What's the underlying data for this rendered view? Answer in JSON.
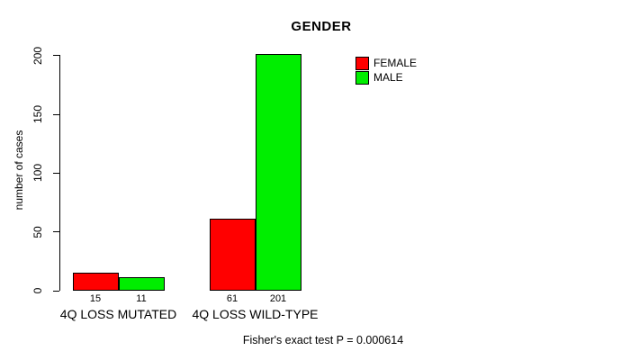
{
  "chart_data": {
    "type": "bar",
    "title": "GENDER",
    "ylabel": "number of cases",
    "xlabel": "",
    "categories": [
      "4Q LOSS MUTATED",
      "4Q LOSS WILD-TYPE"
    ],
    "series": [
      {
        "name": "FEMALE",
        "color": "#FF0000",
        "values": [
          15,
          61
        ]
      },
      {
        "name": "MALE",
        "color": "#00EE00",
        "values": [
          11,
          201
        ]
      }
    ],
    "bar_value_labels": [
      [
        "15",
        "11"
      ],
      [
        "61",
        "201"
      ]
    ],
    "yticks": [
      "0",
      "50",
      "100",
      "150",
      "200"
    ],
    "ytick_values": [
      0,
      50,
      100,
      150,
      200
    ],
    "ylim": [
      0,
      200
    ],
    "grid": false,
    "legend_position": "top-right",
    "annotation": "Fisher's exact test P = 0.000614"
  }
}
